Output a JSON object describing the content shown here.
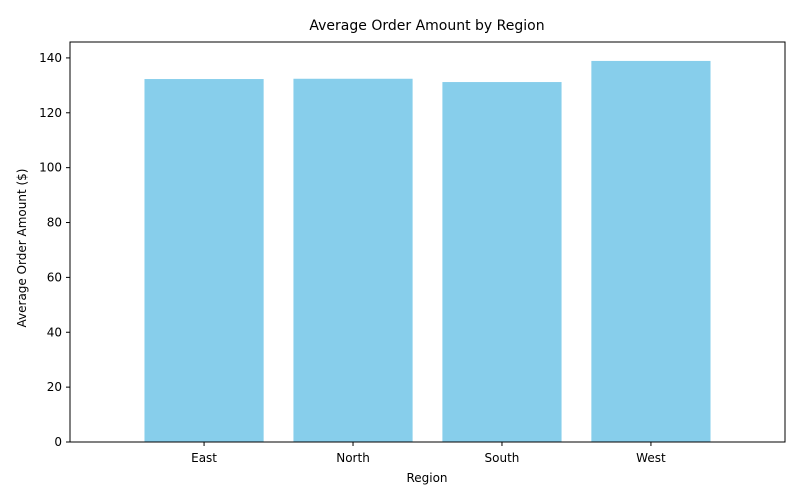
{
  "chart_data": {
    "type": "bar",
    "title": "Average Order Amount by Region",
    "xlabel": "Region",
    "ylabel": "Average Order Amount ($)",
    "categories": [
      "East",
      "North",
      "South",
      "West"
    ],
    "values": [
      132.3,
      132.4,
      131.2,
      138.9
    ],
    "ylim": [
      0,
      145.8
    ],
    "yticks": [
      0,
      20,
      40,
      60,
      80,
      100,
      120,
      140
    ],
    "bar_color": "#87ceeb",
    "grid": false,
    "legend": false
  }
}
